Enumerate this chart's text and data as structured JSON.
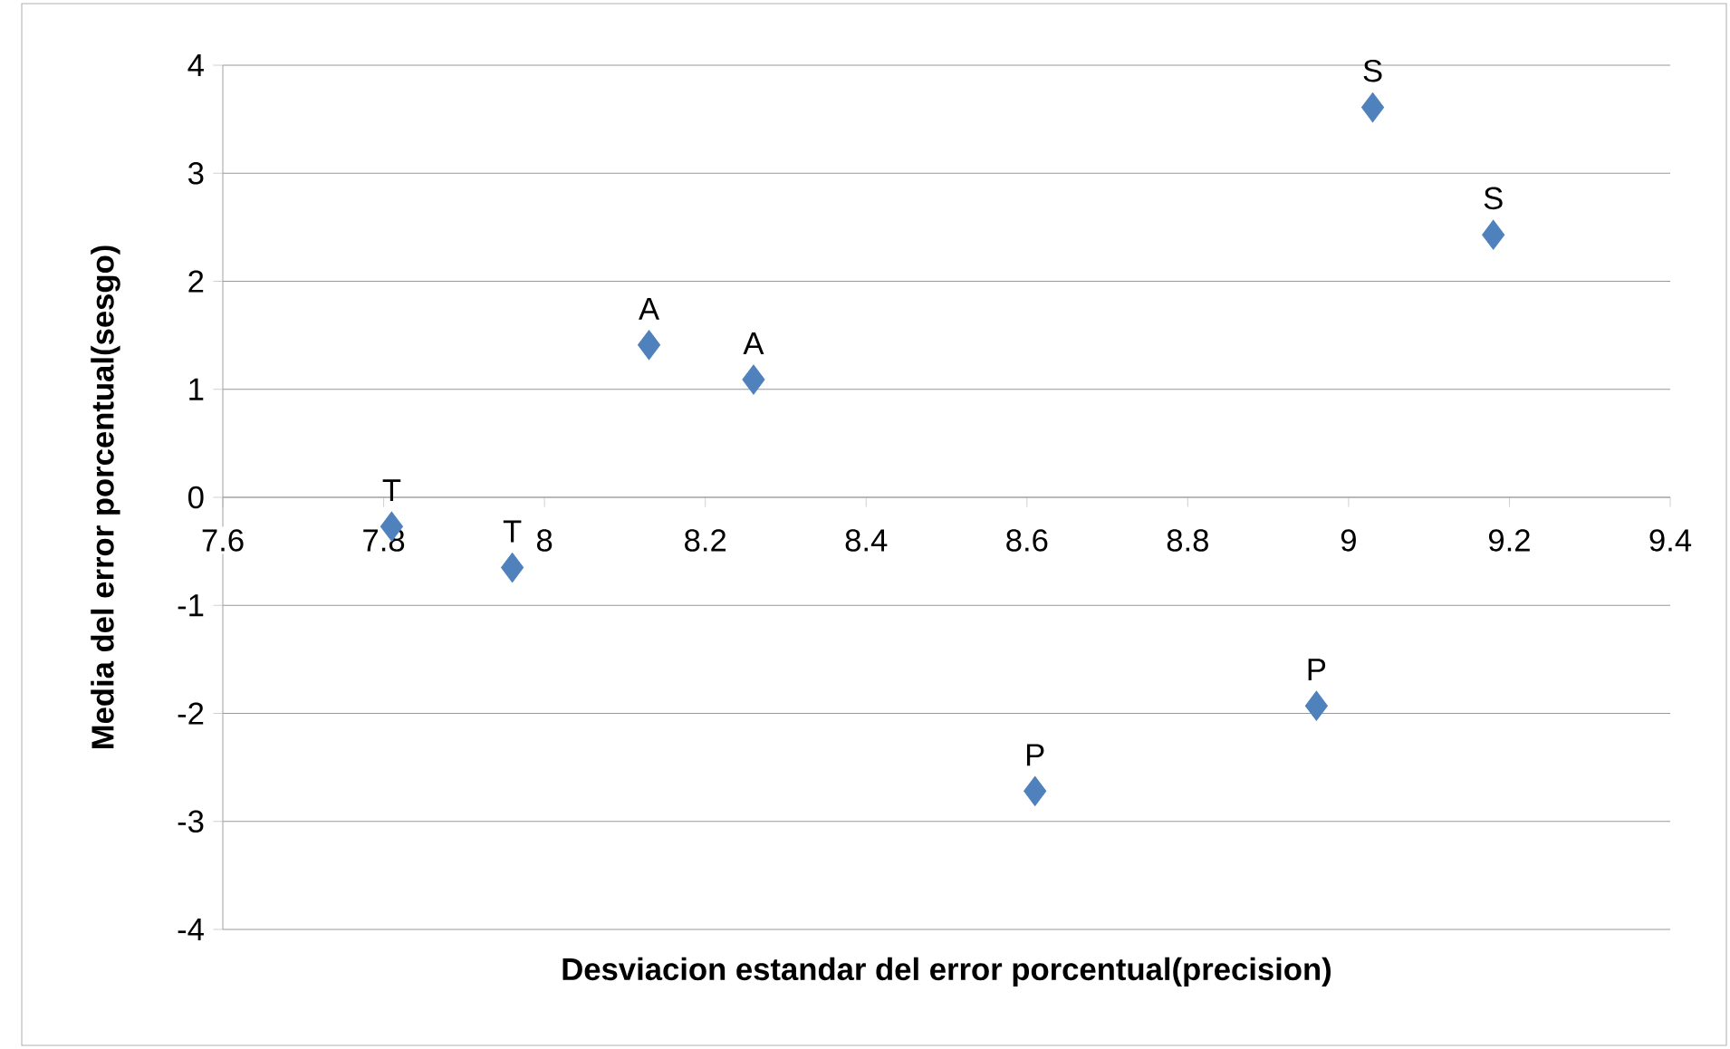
{
  "chart_data": {
    "type": "scatter",
    "xlabel": "Desviacion estandar del error porcentual(precision)",
    "ylabel": "Media del error porcentual(sesgo)",
    "x": [
      7.81,
      7.96,
      8.13,
      8.26,
      8.61,
      8.96,
      9.03,
      9.18
    ],
    "values": [
      -0.27,
      -0.65,
      1.41,
      1.09,
      -2.72,
      -1.93,
      3.61,
      2.43
    ],
    "color": "#4f81bd",
    "marker": "diamond",
    "xlim": [
      7.6,
      9.4
    ],
    "ylim": [
      -4,
      4
    ],
    "xticks": [
      7.6,
      7.8,
      8,
      8.2,
      8.4,
      8.6,
      8.8,
      9,
      9.2,
      9.4
    ],
    "yticks": [
      -4,
      -3,
      -2,
      -1,
      0,
      1,
      2,
      3,
      4
    ],
    "grid": "y",
    "annotations": [
      {
        "text": "T",
        "x": 7.81,
        "y": -0.27
      },
      {
        "text": "T",
        "x": 7.96,
        "y": -0.65
      },
      {
        "text": "A",
        "x": 8.13,
        "y": 1.41
      },
      {
        "text": "A",
        "x": 8.26,
        "y": 1.09
      },
      {
        "text": "P",
        "x": 8.61,
        "y": -2.72
      },
      {
        "text": "P",
        "x": 8.96,
        "y": -1.93
      },
      {
        "text": "S",
        "x": 9.03,
        "y": 3.61
      },
      {
        "text": "S",
        "x": 9.18,
        "y": 2.43
      }
    ]
  }
}
